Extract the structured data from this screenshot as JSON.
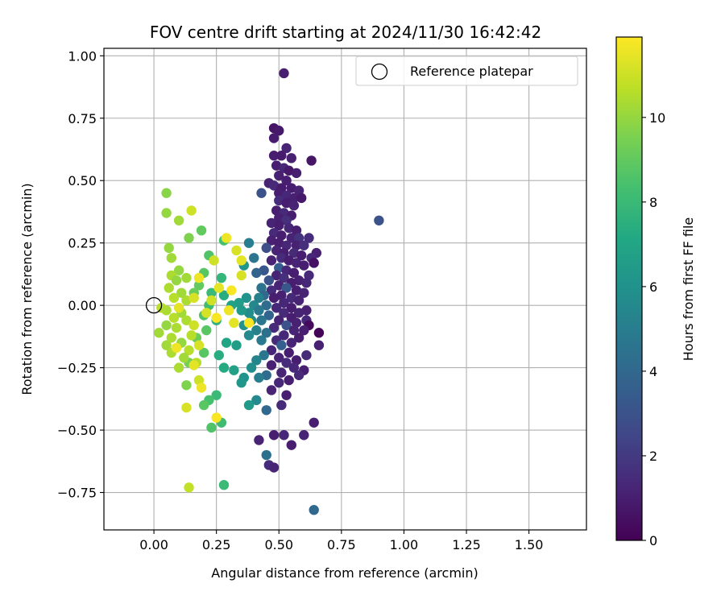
{
  "chart_data": {
    "type": "scatter",
    "title": "FOV centre drift starting at 2024/11/30 16:42:42",
    "xlabel": "Angular distance from reference (arcmin)",
    "ylabel": "Rotation from reference (arcmin)",
    "xlim": [
      -0.2,
      1.73
    ],
    "ylim": [
      -0.9,
      1.03
    ],
    "xticks": [
      "0.00",
      "0.25",
      "0.50",
      "0.75",
      "1.00",
      "1.25",
      "1.50"
    ],
    "xtick_values": [
      0,
      0.25,
      0.5,
      0.75,
      1.0,
      1.25,
      1.5
    ],
    "yticks": [
      "−0.75",
      "−0.50",
      "−0.25",
      "0.00",
      "0.25",
      "0.50",
      "0.75",
      "1.00"
    ],
    "ytick_values": [
      -0.75,
      -0.5,
      -0.25,
      0,
      0.25,
      0.5,
      0.75,
      1.0
    ],
    "grid": true,
    "legend": {
      "position": "top-right",
      "entries": [
        "Reference platepar"
      ]
    },
    "reference_point": {
      "x": 0,
      "y": 0
    },
    "colorbar": {
      "label": "Hours from first FF file",
      "colormap": "viridis",
      "range": [
        0,
        11.9
      ],
      "ticks": [
        "0",
        "2",
        "4",
        "6",
        "8",
        "10"
      ],
      "tick_values": [
        0,
        2,
        4,
        6,
        8,
        10
      ]
    },
    "points": [
      {
        "x": 0.52,
        "y": 0.93,
        "h": 1.0
      },
      {
        "x": 0.48,
        "y": 0.71,
        "h": 0.6
      },
      {
        "x": 0.5,
        "y": 0.7,
        "h": 0.8
      },
      {
        "x": 0.48,
        "y": 0.67,
        "h": 0.9
      },
      {
        "x": 0.53,
        "y": 0.63,
        "h": 1.2
      },
      {
        "x": 0.48,
        "y": 0.6,
        "h": 1.0
      },
      {
        "x": 0.51,
        "y": 0.6,
        "h": 0.9
      },
      {
        "x": 0.55,
        "y": 0.59,
        "h": 1.1
      },
      {
        "x": 0.63,
        "y": 0.58,
        "h": 0.7
      },
      {
        "x": 0.49,
        "y": 0.56,
        "h": 1.0
      },
      {
        "x": 0.52,
        "y": 0.55,
        "h": 1.3
      },
      {
        "x": 0.54,
        "y": 0.54,
        "h": 0.8
      },
      {
        "x": 0.57,
        "y": 0.53,
        "h": 1.0
      },
      {
        "x": 0.5,
        "y": 0.52,
        "h": 1.1
      },
      {
        "x": 0.53,
        "y": 0.5,
        "h": 1.0
      },
      {
        "x": 0.46,
        "y": 0.49,
        "h": 1.2
      },
      {
        "x": 0.48,
        "y": 0.48,
        "h": 1.4
      },
      {
        "x": 0.51,
        "y": 0.47,
        "h": 0.9
      },
      {
        "x": 0.55,
        "y": 0.47,
        "h": 1.0
      },
      {
        "x": 0.58,
        "y": 0.46,
        "h": 1.2
      },
      {
        "x": 0.43,
        "y": 0.45,
        "h": 3.0
      },
      {
        "x": 0.5,
        "y": 0.45,
        "h": 1.0
      },
      {
        "x": 0.53,
        "y": 0.44,
        "h": 1.3
      },
      {
        "x": 0.56,
        "y": 0.43,
        "h": 1.1
      },
      {
        "x": 0.59,
        "y": 0.43,
        "h": 0.8
      },
      {
        "x": 0.5,
        "y": 0.42,
        "h": 1.5
      },
      {
        "x": 0.53,
        "y": 0.41,
        "h": 1.0
      },
      {
        "x": 0.56,
        "y": 0.4,
        "h": 1.2
      },
      {
        "x": 0.49,
        "y": 0.38,
        "h": 1.0
      },
      {
        "x": 0.52,
        "y": 0.37,
        "h": 1.4
      },
      {
        "x": 0.55,
        "y": 0.36,
        "h": 1.0
      },
      {
        "x": 0.5,
        "y": 0.35,
        "h": 1.1
      },
      {
        "x": 0.53,
        "y": 0.34,
        "h": 1.6
      },
      {
        "x": 0.47,
        "y": 0.33,
        "h": 1.2
      },
      {
        "x": 0.5,
        "y": 0.32,
        "h": 1.0
      },
      {
        "x": 0.54,
        "y": 0.31,
        "h": 1.3
      },
      {
        "x": 0.57,
        "y": 0.3,
        "h": 1.0
      },
      {
        "x": 0.48,
        "y": 0.29,
        "h": 1.4
      },
      {
        "x": 0.51,
        "y": 0.28,
        "h": 1.0
      },
      {
        "x": 0.55,
        "y": 0.27,
        "h": 1.2
      },
      {
        "x": 0.58,
        "y": 0.27,
        "h": 1.8
      },
      {
        "x": 0.62,
        "y": 0.27,
        "h": 1.5
      },
      {
        "x": 0.47,
        "y": 0.26,
        "h": 1.1
      },
      {
        "x": 0.5,
        "y": 0.25,
        "h": 1.0
      },
      {
        "x": 0.53,
        "y": 0.24,
        "h": 1.3
      },
      {
        "x": 0.57,
        "y": 0.24,
        "h": 1.1
      },
      {
        "x": 0.6,
        "y": 0.24,
        "h": 1.6
      },
      {
        "x": 0.45,
        "y": 0.23,
        "h": 2.8
      },
      {
        "x": 0.49,
        "y": 0.22,
        "h": 1.2
      },
      {
        "x": 0.52,
        "y": 0.21,
        "h": 1.0
      },
      {
        "x": 0.56,
        "y": 0.21,
        "h": 1.4
      },
      {
        "x": 0.65,
        "y": 0.21,
        "h": 1.1
      },
      {
        "x": 0.59,
        "y": 0.2,
        "h": 1.0
      },
      {
        "x": 0.63,
        "y": 0.19,
        "h": 1.3
      },
      {
        "x": 0.51,
        "y": 0.19,
        "h": 1.5
      },
      {
        "x": 0.54,
        "y": 0.18,
        "h": 1.0
      },
      {
        "x": 0.47,
        "y": 0.18,
        "h": 1.2
      },
      {
        "x": 0.64,
        "y": 0.17,
        "h": 0.5
      },
      {
        "x": 0.57,
        "y": 0.17,
        "h": 1.2
      },
      {
        "x": 0.6,
        "y": 0.16,
        "h": 1.0
      },
      {
        "x": 0.5,
        "y": 0.15,
        "h": 3.5
      },
      {
        "x": 0.53,
        "y": 0.14,
        "h": 1.3
      },
      {
        "x": 0.44,
        "y": 0.14,
        "h": 3.2
      },
      {
        "x": 0.41,
        "y": 0.13,
        "h": 3.8
      },
      {
        "x": 0.56,
        "y": 0.13,
        "h": 1.0
      },
      {
        "x": 0.62,
        "y": 0.12,
        "h": 1.4
      },
      {
        "x": 0.49,
        "y": 0.12,
        "h": 1.2
      },
      {
        "x": 0.52,
        "y": 0.11,
        "h": 1.6
      },
      {
        "x": 0.58,
        "y": 0.1,
        "h": 1.1
      },
      {
        "x": 0.46,
        "y": 0.1,
        "h": 3.0
      },
      {
        "x": 0.55,
        "y": 0.09,
        "h": 1.0
      },
      {
        "x": 0.61,
        "y": 0.09,
        "h": 1.3
      },
      {
        "x": 0.5,
        "y": 0.08,
        "h": 1.2
      },
      {
        "x": 0.43,
        "y": 0.07,
        "h": 4.5
      },
      {
        "x": 0.53,
        "y": 0.07,
        "h": 3.2
      },
      {
        "x": 0.57,
        "y": 0.06,
        "h": 1.0
      },
      {
        "x": 0.47,
        "y": 0.06,
        "h": 1.5
      },
      {
        "x": 0.6,
        "y": 0.05,
        "h": 1.2
      },
      {
        "x": 0.51,
        "y": 0.04,
        "h": 1.1
      },
      {
        "x": 0.44,
        "y": 0.04,
        "h": 4.0
      },
      {
        "x": 0.55,
        "y": 0.03,
        "h": 1.4
      },
      {
        "x": 0.48,
        "y": 0.03,
        "h": 1.0
      },
      {
        "x": 0.58,
        "y": 0.02,
        "h": 1.2
      },
      {
        "x": 0.52,
        "y": 0.01,
        "h": 1.3
      },
      {
        "x": 0.4,
        "y": 0.0,
        "h": 5.5
      },
      {
        "x": 0.45,
        "y": 0.0,
        "h": 4.2
      },
      {
        "x": 0.55,
        "y": -0.01,
        "h": 1.0
      },
      {
        "x": 0.49,
        "y": -0.01,
        "h": 1.3
      },
      {
        "x": 0.61,
        "y": -0.02,
        "h": 1.1
      },
      {
        "x": 0.42,
        "y": -0.02,
        "h": 4.8
      },
      {
        "x": 0.52,
        "y": -0.03,
        "h": 1.4
      },
      {
        "x": 0.58,
        "y": -0.03,
        "h": 1.2
      },
      {
        "x": 0.46,
        "y": -0.04,
        "h": 3.8
      },
      {
        "x": 0.55,
        "y": -0.05,
        "h": 1.0
      },
      {
        "x": 0.38,
        "y": -0.03,
        "h": 5.8
      },
      {
        "x": 0.61,
        "y": -0.06,
        "h": 1.3
      },
      {
        "x": 0.5,
        "y": -0.06,
        "h": 1.2
      },
      {
        "x": 0.43,
        "y": -0.06,
        "h": 4.6
      },
      {
        "x": 0.57,
        "y": -0.07,
        "h": 1.1
      },
      {
        "x": 0.53,
        "y": -0.08,
        "h": 3.0
      },
      {
        "x": 0.62,
        "y": -0.08,
        "h": 0.3
      },
      {
        "x": 0.66,
        "y": -0.11,
        "h": 0.1
      },
      {
        "x": 0.48,
        "y": -0.09,
        "h": 1.4
      },
      {
        "x": 0.41,
        "y": -0.1,
        "h": 5.2
      },
      {
        "x": 0.56,
        "y": -0.1,
        "h": 1.2
      },
      {
        "x": 0.6,
        "y": -0.1,
        "h": 1.0
      },
      {
        "x": 0.45,
        "y": -0.11,
        "h": 4.4
      },
      {
        "x": 0.52,
        "y": -0.12,
        "h": 1.3
      },
      {
        "x": 0.38,
        "y": -0.12,
        "h": 5.6
      },
      {
        "x": 0.58,
        "y": -0.13,
        "h": 1.0
      },
      {
        "x": 0.49,
        "y": -0.14,
        "h": 1.5
      },
      {
        "x": 0.43,
        "y": -0.14,
        "h": 4.8
      },
      {
        "x": 0.55,
        "y": -0.15,
        "h": 1.2
      },
      {
        "x": 0.66,
        "y": -0.16,
        "h": 1.1
      },
      {
        "x": 0.51,
        "y": -0.16,
        "h": 3.6
      },
      {
        "x": 0.47,
        "y": -0.18,
        "h": 1.3
      },
      {
        "x": 0.54,
        "y": -0.19,
        "h": 1.0
      },
      {
        "x": 0.61,
        "y": -0.2,
        "h": 1.4
      },
      {
        "x": 0.44,
        "y": -0.2,
        "h": 4.6
      },
      {
        "x": 0.5,
        "y": -0.21,
        "h": 1.2
      },
      {
        "x": 0.57,
        "y": -0.22,
        "h": 1.0
      },
      {
        "x": 0.41,
        "y": -0.22,
        "h": 5.4
      },
      {
        "x": 0.53,
        "y": -0.23,
        "h": 1.5
      },
      {
        "x": 0.47,
        "y": -0.24,
        "h": 1.1
      },
      {
        "x": 0.39,
        "y": -0.25,
        "h": 5.8
      },
      {
        "x": 0.56,
        "y": -0.25,
        "h": 1.3
      },
      {
        "x": 0.6,
        "y": -0.26,
        "h": 1.0
      },
      {
        "x": 0.51,
        "y": -0.27,
        "h": 1.2
      },
      {
        "x": 0.45,
        "y": -0.28,
        "h": 4.2
      },
      {
        "x": 0.58,
        "y": -0.28,
        "h": 1.4
      },
      {
        "x": 0.36,
        "y": -0.29,
        "h": 6.0
      },
      {
        "x": 0.42,
        "y": -0.29,
        "h": 5.0
      },
      {
        "x": 0.54,
        "y": -0.3,
        "h": 1.0
      },
      {
        "x": 0.35,
        "y": -0.31,
        "h": 6.2
      },
      {
        "x": 0.5,
        "y": -0.31,
        "h": 1.3
      },
      {
        "x": 0.47,
        "y": -0.34,
        "h": 1.2
      },
      {
        "x": 0.53,
        "y": -0.36,
        "h": 1.0
      },
      {
        "x": 0.41,
        "y": -0.38,
        "h": 5.6
      },
      {
        "x": 0.38,
        "y": -0.4,
        "h": 6.4
      },
      {
        "x": 0.51,
        "y": -0.4,
        "h": 1.4
      },
      {
        "x": 0.45,
        "y": -0.42,
        "h": 4.0
      },
      {
        "x": 0.64,
        "y": -0.47,
        "h": 1.0
      },
      {
        "x": 0.42,
        "y": -0.54,
        "h": 1.2
      },
      {
        "x": 0.48,
        "y": -0.52,
        "h": 1.0
      },
      {
        "x": 0.52,
        "y": -0.52,
        "h": 1.3
      },
      {
        "x": 0.55,
        "y": -0.56,
        "h": 1.0
      },
      {
        "x": 0.6,
        "y": -0.52,
        "h": 1.2
      },
      {
        "x": 0.45,
        "y": -0.6,
        "h": 4.4
      },
      {
        "x": 0.46,
        "y": -0.64,
        "h": 1.5
      },
      {
        "x": 0.48,
        "y": -0.65,
        "h": 1.2
      },
      {
        "x": 0.64,
        "y": -0.82,
        "h": 4.0
      },
      {
        "x": 0.9,
        "y": 0.34,
        "h": 3.0
      },
      {
        "x": 0.38,
        "y": 0.25,
        "h": 5.0
      },
      {
        "x": 0.4,
        "y": 0.19,
        "h": 4.6
      },
      {
        "x": 0.36,
        "y": 0.16,
        "h": 6.2
      },
      {
        "x": 0.42,
        "y": 0.03,
        "h": 5.2
      },
      {
        "x": 0.37,
        "y": 0.03,
        "h": 6.0
      },
      {
        "x": 0.34,
        "y": 0.01,
        "h": 6.6
      },
      {
        "x": 0.31,
        "y": 0.0,
        "h": 6.8
      },
      {
        "x": 0.35,
        "y": -0.02,
        "h": 6.4
      },
      {
        "x": 0.39,
        "y": -0.06,
        "h": 5.8
      },
      {
        "x": 0.36,
        "y": -0.08,
        "h": 6.0
      },
      {
        "x": 0.33,
        "y": -0.16,
        "h": 6.6
      },
      {
        "x": 0.29,
        "y": -0.15,
        "h": 7.0
      },
      {
        "x": 0.32,
        "y": -0.26,
        "h": 6.8
      },
      {
        "x": 0.28,
        "y": -0.25,
        "h": 7.2
      },
      {
        "x": 0.26,
        "y": -0.2,
        "h": 7.4
      },
      {
        "x": 0.25,
        "y": -0.06,
        "h": 7.6
      },
      {
        "x": 0.28,
        "y": 0.04,
        "h": 7.4
      },
      {
        "x": 0.27,
        "y": 0.11,
        "h": 7.8
      },
      {
        "x": 0.23,
        "y": 0.05,
        "h": 8.0
      },
      {
        "x": 0.22,
        "y": 0.0,
        "h": 8.2
      },
      {
        "x": 0.2,
        "y": -0.04,
        "h": 8.6
      },
      {
        "x": 0.25,
        "y": -0.36,
        "h": 8.0
      },
      {
        "x": 0.22,
        "y": -0.38,
        "h": 8.4
      },
      {
        "x": 0.2,
        "y": -0.4,
        "h": 8.8
      },
      {
        "x": 0.27,
        "y": -0.47,
        "h": 8.2
      },
      {
        "x": 0.23,
        "y": -0.49,
        "h": 8.6
      },
      {
        "x": 0.28,
        "y": -0.72,
        "h": 8.0
      },
      {
        "x": 0.28,
        "y": 0.26,
        "h": 8.4
      },
      {
        "x": 0.22,
        "y": 0.2,
        "h": 8.6
      },
      {
        "x": 0.2,
        "y": 0.13,
        "h": 8.8
      },
      {
        "x": 0.18,
        "y": 0.08,
        "h": 9.0
      },
      {
        "x": 0.16,
        "y": 0.05,
        "h": 9.2
      },
      {
        "x": 0.21,
        "y": -0.1,
        "h": 8.8
      },
      {
        "x": 0.17,
        "y": -0.13,
        "h": 9.2
      },
      {
        "x": 0.2,
        "y": -0.19,
        "h": 8.8
      },
      {
        "x": 0.14,
        "y": -0.23,
        "h": 9.4
      },
      {
        "x": 0.13,
        "y": -0.32,
        "h": 9.6
      },
      {
        "x": 0.19,
        "y": 0.3,
        "h": 9.0
      },
      {
        "x": 0.14,
        "y": 0.27,
        "h": 9.6
      },
      {
        "x": 0.05,
        "y": 0.45,
        "h": 9.8
      },
      {
        "x": 0.05,
        "y": 0.37,
        "h": 10.0
      },
      {
        "x": 0.1,
        "y": 0.34,
        "h": 10.2
      },
      {
        "x": 0.06,
        "y": 0.23,
        "h": 10.0
      },
      {
        "x": 0.07,
        "y": 0.19,
        "h": 10.2
      },
      {
        "x": 0.1,
        "y": 0.14,
        "h": 10.0
      },
      {
        "x": 0.07,
        "y": 0.12,
        "h": 10.4
      },
      {
        "x": 0.13,
        "y": 0.11,
        "h": 10.2
      },
      {
        "x": 0.09,
        "y": 0.1,
        "h": 10.0
      },
      {
        "x": 0.06,
        "y": 0.07,
        "h": 10.4
      },
      {
        "x": 0.11,
        "y": 0.05,
        "h": 10.2
      },
      {
        "x": 0.08,
        "y": 0.03,
        "h": 10.6
      },
      {
        "x": 0.13,
        "y": 0.02,
        "h": 10.4
      },
      {
        "x": 0.03,
        "y": -0.01,
        "h": 10.6
      },
      {
        "x": 0.05,
        "y": -0.02,
        "h": 10.4
      },
      {
        "x": 0.11,
        "y": -0.03,
        "h": 10.2
      },
      {
        "x": 0.08,
        "y": -0.05,
        "h": 10.6
      },
      {
        "x": 0.13,
        "y": -0.06,
        "h": 10.4
      },
      {
        "x": 0.05,
        "y": -0.08,
        "h": 10.0
      },
      {
        "x": 0.09,
        "y": -0.09,
        "h": 10.4
      },
      {
        "x": 0.02,
        "y": -0.11,
        "h": 10.2
      },
      {
        "x": 0.15,
        "y": -0.12,
        "h": 10.6
      },
      {
        "x": 0.07,
        "y": -0.13,
        "h": 10.4
      },
      {
        "x": 0.11,
        "y": -0.15,
        "h": 10.0
      },
      {
        "x": 0.05,
        "y": -0.16,
        "h": 10.2
      },
      {
        "x": 0.14,
        "y": -0.18,
        "h": 10.6
      },
      {
        "x": 0.07,
        "y": -0.19,
        "h": 10.4
      },
      {
        "x": 0.12,
        "y": -0.21,
        "h": 10.2
      },
      {
        "x": 0.1,
        "y": -0.25,
        "h": 10.4
      },
      {
        "x": 0.17,
        "y": -0.23,
        "h": 10.6
      },
      {
        "x": 0.14,
        "y": -0.73,
        "h": 10.8
      },
      {
        "x": 0.15,
        "y": 0.38,
        "h": 11.0
      },
      {
        "x": 0.29,
        "y": 0.27,
        "h": 11.6
      },
      {
        "x": 0.33,
        "y": 0.22,
        "h": 11.2
      },
      {
        "x": 0.35,
        "y": 0.18,
        "h": 11.4
      },
      {
        "x": 0.24,
        "y": 0.18,
        "h": 11.0
      },
      {
        "x": 0.18,
        "y": 0.11,
        "h": 11.6
      },
      {
        "x": 0.35,
        "y": 0.12,
        "h": 11.2
      },
      {
        "x": 0.26,
        "y": 0.07,
        "h": 11.4
      },
      {
        "x": 0.31,
        "y": 0.06,
        "h": 11.8
      },
      {
        "x": 0.16,
        "y": 0.03,
        "h": 11.2
      },
      {
        "x": 0.23,
        "y": 0.02,
        "h": 11.0
      },
      {
        "x": 0.1,
        "y": -0.01,
        "h": 11.4
      },
      {
        "x": 0.3,
        "y": -0.02,
        "h": 11.6
      },
      {
        "x": 0.21,
        "y": -0.03,
        "h": 11.2
      },
      {
        "x": 0.25,
        "y": -0.05,
        "h": 11.8
      },
      {
        "x": 0.32,
        "y": -0.07,
        "h": 11.4
      },
      {
        "x": 0.38,
        "y": -0.07,
        "h": 11.8
      },
      {
        "x": 0.16,
        "y": -0.08,
        "h": 11.0
      },
      {
        "x": 0.18,
        "y": -0.16,
        "h": 11.2
      },
      {
        "x": 0.09,
        "y": -0.17,
        "h": 11.6
      },
      {
        "x": 0.16,
        "y": -0.24,
        "h": 11.4
      },
      {
        "x": 0.18,
        "y": -0.3,
        "h": 11.0
      },
      {
        "x": 0.19,
        "y": -0.33,
        "h": 11.6
      },
      {
        "x": 0.13,
        "y": -0.41,
        "h": 11.2
      },
      {
        "x": 0.25,
        "y": -0.45,
        "h": 11.8
      }
    ]
  }
}
